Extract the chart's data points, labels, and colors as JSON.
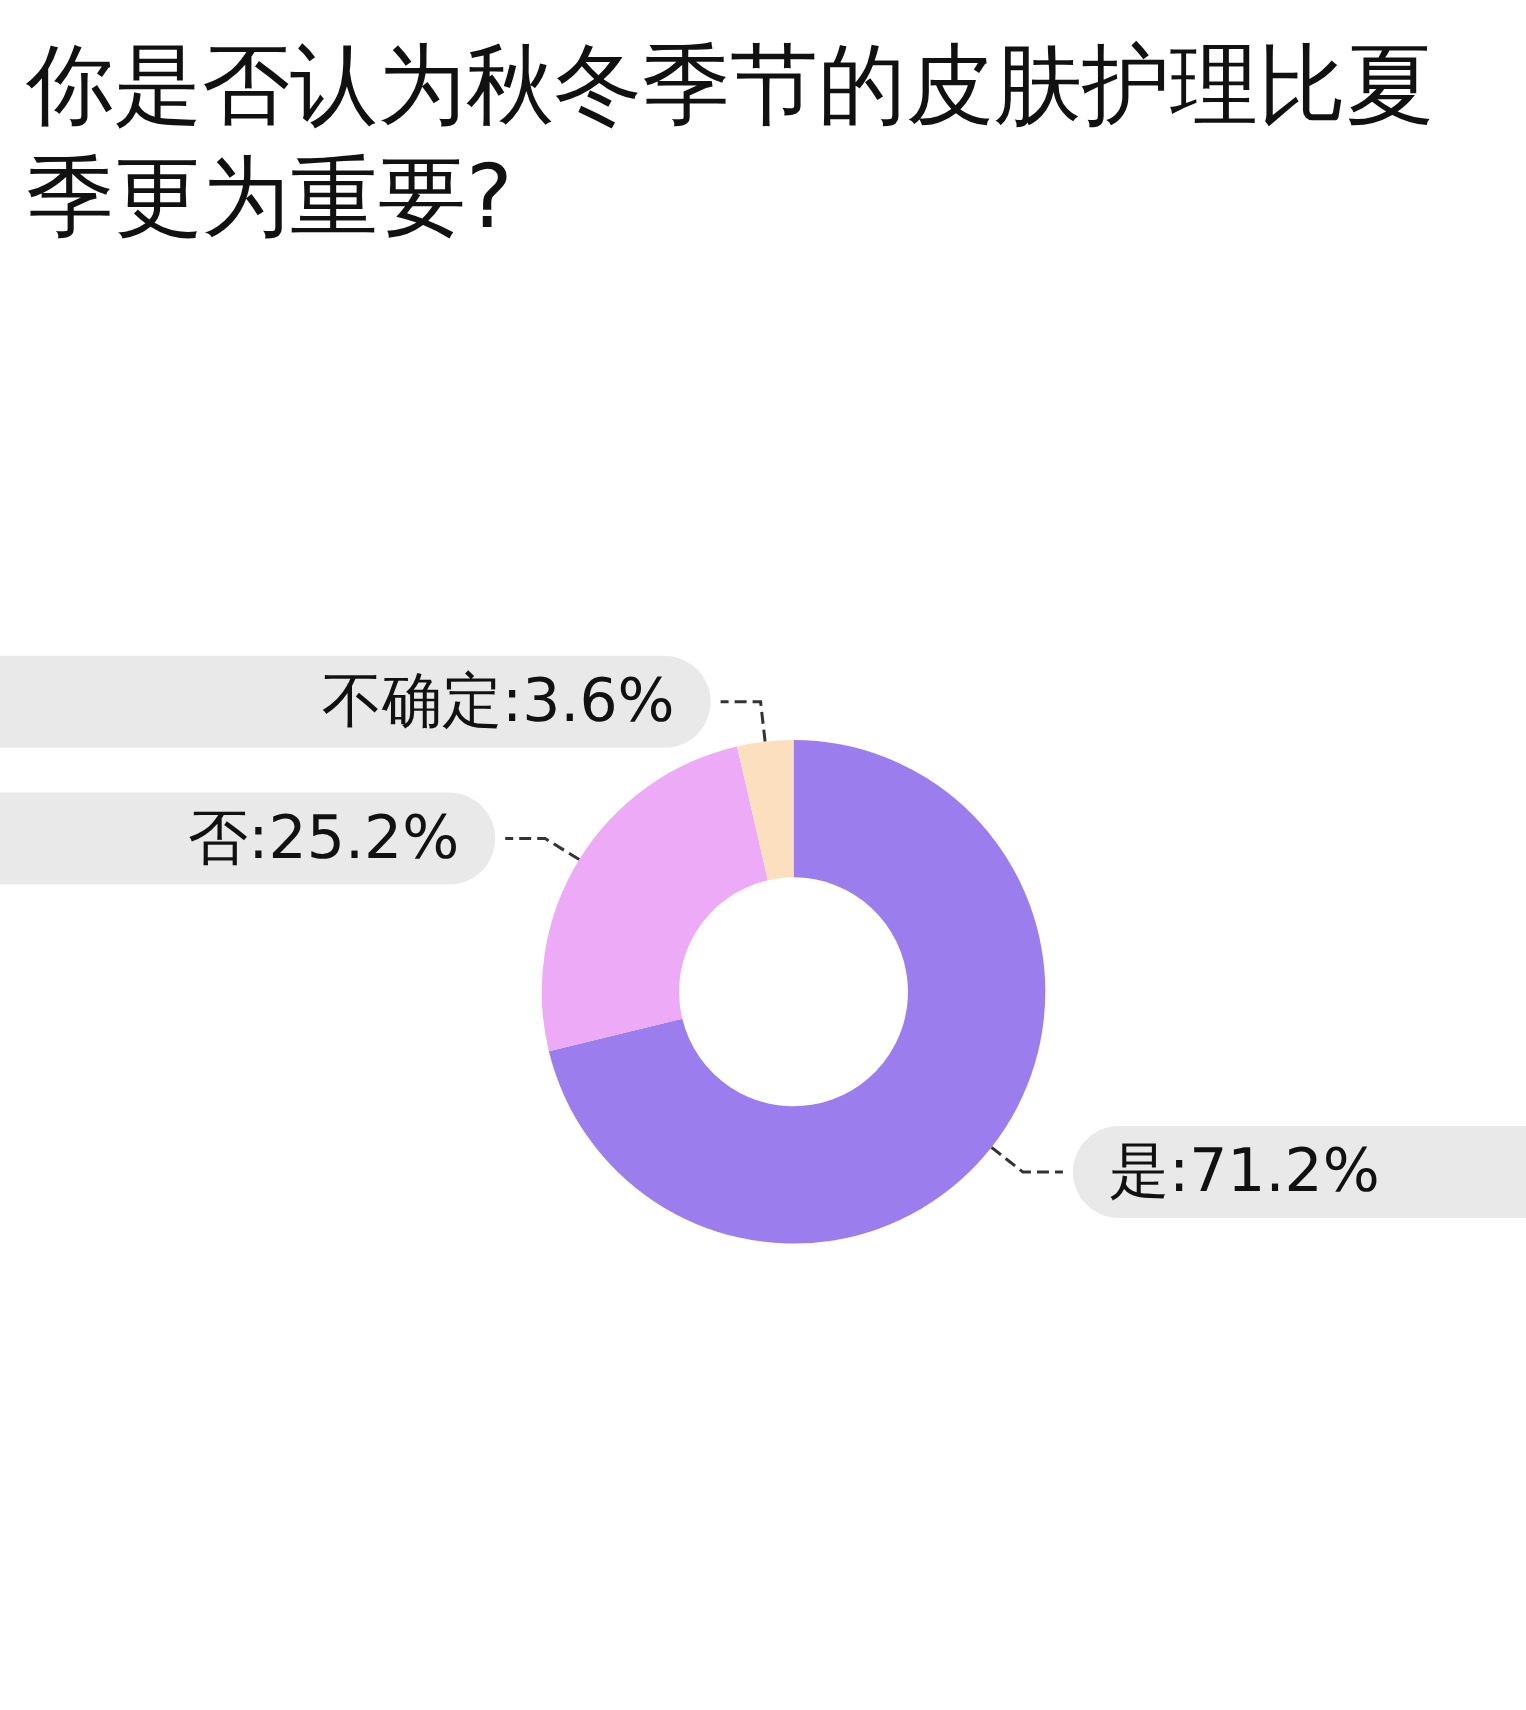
{
  "chart_data": {
    "type": "donut",
    "title": "你是否认为秋冬季节的皮肤护理比夏季更为重要?",
    "categories": [
      "是",
      "否",
      "不确定"
    ],
    "values": [
      71.2,
      25.2,
      3.6
    ],
    "value_labels": [
      "71.2%",
      "25.2%",
      "3.6%"
    ],
    "colors": [
      "#9b7ded",
      "#edaaf6",
      "#fbdfbf"
    ],
    "legend": false
  }
}
